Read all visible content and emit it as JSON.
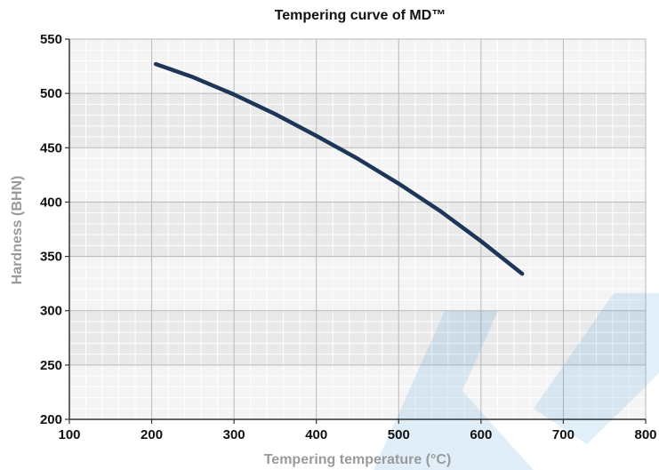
{
  "chart_data": {
    "type": "line",
    "title": "Tempering curve of MD™",
    "xlabel": "Tempering temperature (°C)",
    "ylabel": "Hardness (BHN)",
    "xlim": [
      100,
      800
    ],
    "ylim": [
      200,
      550
    ],
    "x_ticks": [
      100,
      200,
      300,
      400,
      500,
      600,
      700,
      800
    ],
    "y_ticks": [
      200,
      250,
      300,
      350,
      400,
      450,
      500,
      550
    ],
    "grid": true,
    "legend": "none",
    "series": [
      {
        "color": "#1d3557",
        "x": [
          205,
          250,
          300,
          350,
          400,
          450,
          500,
          550,
          600,
          650
        ],
        "y": [
          527,
          515,
          499,
          481,
          461,
          440,
          417,
          392,
          364,
          334
        ]
      }
    ]
  },
  "colors": {
    "band_dark": "#e9e9ea",
    "band_light": "#f4f4f5",
    "line": "#1d3557",
    "watermark": "#2b8fd6"
  }
}
